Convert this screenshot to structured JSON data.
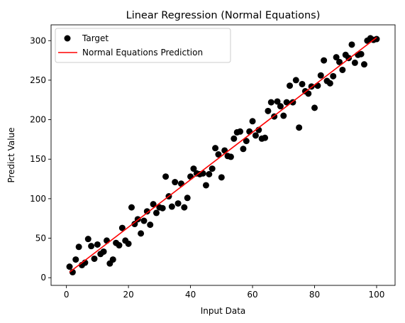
{
  "chart_data": {
    "type": "scatter",
    "title": "Linear Regression (Normal Equations)",
    "xlabel": "Input Data",
    "ylabel": "Predict Value",
    "xlim": [
      -4.95,
      105.95
    ],
    "ylim": [
      -9.7,
      320
    ],
    "xticks": [
      0,
      20,
      40,
      60,
      80,
      100
    ],
    "yticks": [
      0,
      50,
      100,
      150,
      200,
      250,
      300
    ],
    "grid": false,
    "legend_position": "top-left",
    "series": [
      {
        "name": "Target",
        "kind": "scatter",
        "color": "#000000",
        "x": [
          1,
          2,
          3,
          4,
          5,
          6,
          7,
          8,
          9,
          10,
          11,
          12,
          13,
          14,
          15,
          16,
          17,
          18,
          19,
          20,
          21,
          22,
          23,
          24,
          25,
          26,
          27,
          28,
          29,
          30,
          31,
          32,
          33,
          34,
          35,
          36,
          37,
          38,
          39,
          40,
          41,
          42,
          43,
          44,
          45,
          46,
          47,
          48,
          49,
          50,
          51,
          52,
          53,
          54,
          55,
          56,
          57,
          58,
          59,
          60,
          61,
          62,
          63,
          64,
          65,
          66,
          67,
          68,
          69,
          70,
          71,
          72,
          73,
          74,
          75,
          76,
          77,
          78,
          79,
          80,
          81,
          82,
          83,
          84,
          85,
          86,
          87,
          88,
          89,
          90,
          91,
          92,
          93,
          94,
          95,
          96,
          97,
          98,
          99,
          100
        ],
        "y": [
          14,
          7,
          23,
          39,
          16,
          19,
          49,
          40,
          24,
          42,
          30,
          33,
          47,
          18,
          23,
          44,
          41,
          63,
          47,
          43,
          89,
          68,
          74,
          56,
          72,
          84,
          67,
          93,
          82,
          89,
          88,
          128,
          103,
          90,
          121,
          94,
          119,
          89,
          101,
          128,
          138,
          132,
          131,
          132,
          117,
          131,
          138,
          164,
          156,
          127,
          161,
          154,
          153,
          176,
          184,
          185,
          163,
          173,
          185,
          198,
          180,
          187,
          176,
          177,
          211,
          222,
          204,
          223,
          217,
          205,
          222,
          243,
          222,
          250,
          190,
          245,
          236,
          233,
          242,
          215,
          243,
          256,
          275,
          249,
          246,
          255,
          279,
          273,
          263,
          282,
          278,
          295,
          272,
          282,
          283,
          270,
          300,
          303,
          301,
          302
        ]
      },
      {
        "name": "Normal Equations Prediction",
        "kind": "line",
        "color": "#ff0000",
        "x": [
          1,
          100
        ],
        "y": [
          7,
          304
        ]
      }
    ]
  }
}
